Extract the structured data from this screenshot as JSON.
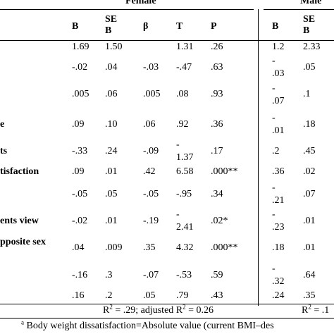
{
  "groups": {
    "female": "Female",
    "male": "Male"
  },
  "columns": {
    "female": [
      "B",
      "SE",
      "B",
      "β",
      "T",
      "P"
    ],
    "male": [
      "B",
      "SE",
      "B"
    ]
  },
  "row_labels": [
    "e",
    "ts",
    "tisfaction",
    "ents view",
    "pposite  sex"
  ],
  "rows": [
    {
      "f": [
        "1.69",
        "1.50",
        "",
        "1.31",
        ".26"
      ],
      "m": [
        "1.2",
        "2.33"
      ]
    },
    {
      "f": [
        "-.02",
        ".04",
        "-.03",
        "-.47",
        ".63"
      ],
      "m": [
        "-",
        ".03",
        ".05"
      ]
    },
    {
      "f": [
        ".005",
        ".06",
        ".005",
        ".08",
        ".93"
      ],
      "m": [
        "-",
        ".07",
        ".1"
      ]
    },
    {
      "f": [
        ".09",
        ".10",
        ".06",
        ".92",
        ".36"
      ],
      "m": [
        "-",
        ".01",
        ".18"
      ]
    },
    {
      "f": [
        "-.33",
        ".24",
        "-.09",
        "-",
        "1.37",
        ".17"
      ],
      "m": [
        ".2",
        ".45"
      ]
    },
    {
      "f": [
        ".09",
        ".01",
        ".42",
        "6.58",
        ".000**"
      ],
      "m": [
        ".36",
        ".02"
      ]
    },
    {
      "f": [
        "-.05",
        ".05",
        "-.05",
        "-.95",
        ".34"
      ],
      "m": [
        "-",
        ".21",
        ".07"
      ]
    },
    {
      "f": [
        "-.02",
        ".01",
        "-.19",
        "-",
        "2.41",
        ".02*"
      ],
      "m": [
        "-",
        ".23",
        ".01"
      ]
    },
    {
      "f": [
        ".04",
        ".009",
        ".35",
        "4.32",
        ".000**"
      ],
      "m": [
        ".18",
        ".01"
      ]
    },
    {
      "f": [
        "-.16",
        ".3",
        "-.07",
        "-.53",
        ".59"
      ],
      "m": [
        "-",
        ".32",
        ".64"
      ]
    },
    {
      "f": [
        ".16",
        ".2",
        ".05",
        ".79",
        ".43"
      ],
      "m": [
        ".24",
        ".35"
      ]
    }
  ],
  "r2": {
    "female_pre": "R",
    "female_sup": "2",
    "female_mid": " = .29; adjusted R",
    "female_sup2": "2",
    "female_post": " = 0.26",
    "male_pre": "R",
    "male_sup": "2",
    "male_post": " = .1"
  },
  "footnote": {
    "sup": "a",
    "text": " Body weight dissatisfaction=Absolute value (current BMI–des"
  }
}
